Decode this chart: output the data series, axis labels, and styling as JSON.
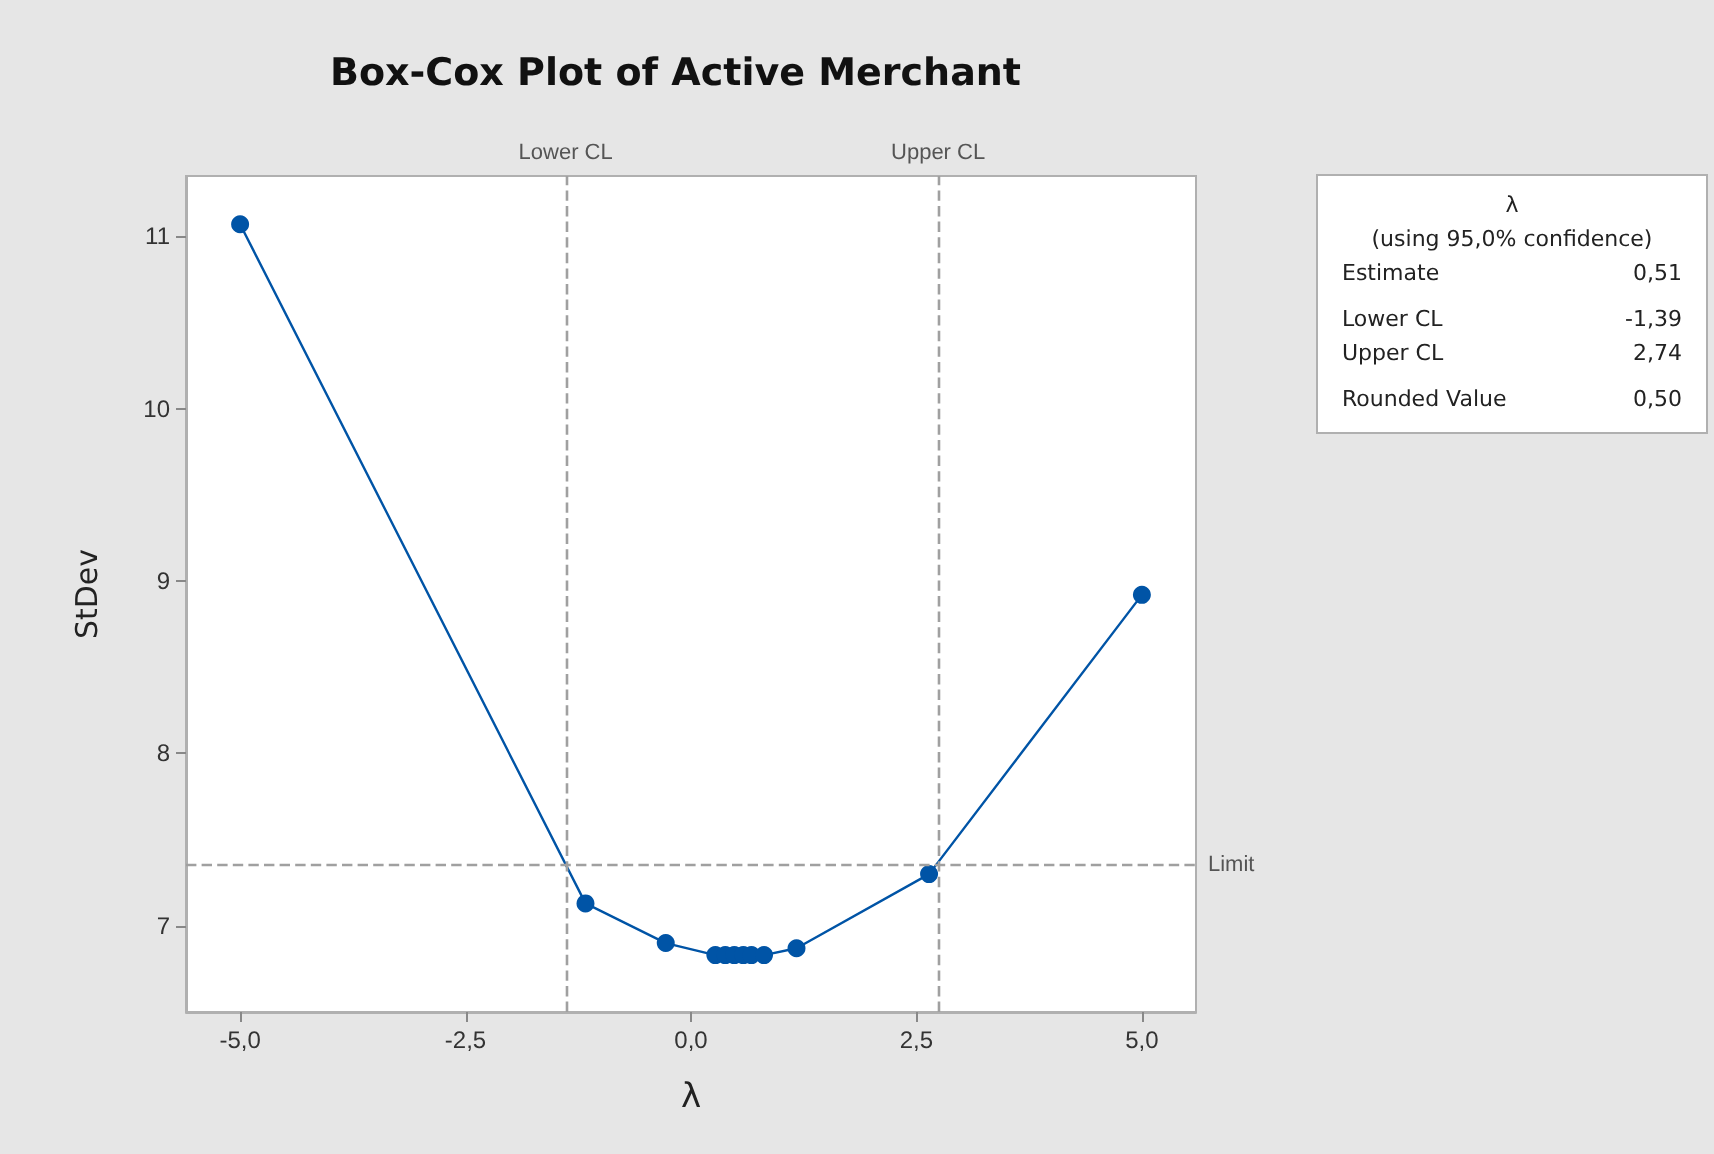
{
  "chart_data": {
    "type": "line",
    "title": "Box-Cox Plot of Active Merchant",
    "xlabel": "λ",
    "ylabel": "StDev",
    "x": [
      -5,
      -1.17,
      -0.28,
      0.27,
      0.38,
      0.48,
      0.58,
      0.67,
      0.81,
      1.17,
      2.64,
      5
    ],
    "series": [
      {
        "color": "#0054a6",
        "values": [
          11.07,
          7.13,
          6.9,
          6.83,
          6.83,
          6.83,
          6.83,
          6.83,
          6.83,
          6.87,
          7.3,
          8.92
        ]
      }
    ],
    "xlim": [
      -5.6,
      5.6
    ],
    "ylim": [
      6.5,
      11.35
    ],
    "xticks": [
      {
        "value": -5,
        "label": "-5,0"
      },
      {
        "value": -2.5,
        "label": "-2,5"
      },
      {
        "value": 0,
        "label": "0,0"
      },
      {
        "value": 2.5,
        "label": "2,5"
      },
      {
        "value": 5,
        "label": "5,0"
      }
    ],
    "yticks": [
      7,
      8,
      9,
      10,
      11
    ],
    "ref_lines": [
      {
        "axis": "x",
        "value": -1.39,
        "label": "Lower CL",
        "color": "#a0a0a0",
        "line_style": "dashed"
      },
      {
        "axis": "x",
        "value": 2.74,
        "label": "Upper CL",
        "color": "#a0a0a0",
        "line_style": "dashed"
      },
      {
        "axis": "y",
        "value": 7.35,
        "label": "Limit",
        "color": "#a0a0a0",
        "line_style": "dashed"
      }
    ],
    "annotations": [
      "λ",
      "(using 95,0% confidence)",
      "Estimate",
      "0,51",
      "Lower CL",
      "-1,39",
      "Upper CL",
      "2,74",
      "Rounded Value",
      "0,50"
    ],
    "marker": "circle",
    "line_style": "solid",
    "grid": false
  }
}
